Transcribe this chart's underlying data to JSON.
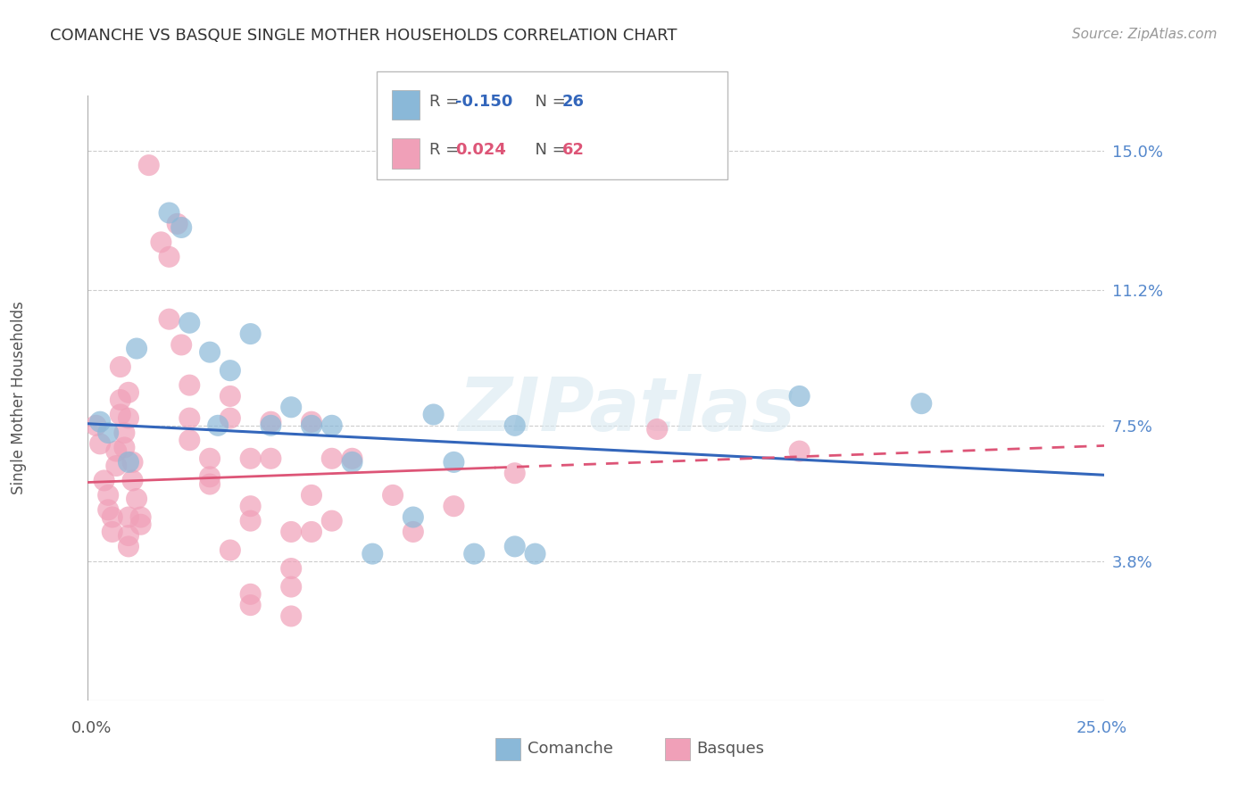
{
  "title": "COMANCHE VS BASQUE SINGLE MOTHER HOUSEHOLDS CORRELATION CHART",
  "source": "Source: ZipAtlas.com",
  "ylabel": "Single Mother Households",
  "xlim": [
    0.0,
    25.0
  ],
  "ylim": [
    0.0,
    16.5
  ],
  "yticks": [
    3.8,
    7.5,
    11.2,
    15.0
  ],
  "ytick_labels": [
    "3.8%",
    "7.5%",
    "11.2%",
    "15.0%"
  ],
  "grid_color": "#cccccc",
  "background_color": "#ffffff",
  "watermark": "ZIPatlas",
  "comanche_R": "-0.150",
  "comanche_N": "26",
  "basque_R": "0.024",
  "basque_N": "62",
  "comanche_color": "#8ab8d8",
  "basque_color": "#f0a0b8",
  "comanche_line_color": "#3366bb",
  "basque_line_color": "#dd5577",
  "comanche_line_x0": 0.0,
  "comanche_line_y0": 7.55,
  "comanche_line_x1": 25.0,
  "comanche_line_y1": 6.15,
  "basque_line_x0": 0.0,
  "basque_line_y0": 5.95,
  "basque_line_x1": 25.0,
  "basque_line_y1": 6.95,
  "basque_dash_start": 10.0,
  "comanche_points": [
    [
      0.3,
      7.6
    ],
    [
      0.5,
      7.3
    ],
    [
      1.0,
      6.5
    ],
    [
      1.2,
      9.6
    ],
    [
      2.0,
      13.3
    ],
    [
      2.3,
      12.9
    ],
    [
      2.5,
      10.3
    ],
    [
      3.0,
      9.5
    ],
    [
      3.2,
      7.5
    ],
    [
      3.5,
      9.0
    ],
    [
      4.0,
      10.0
    ],
    [
      4.5,
      7.5
    ],
    [
      5.0,
      8.0
    ],
    [
      5.5,
      7.5
    ],
    [
      6.0,
      7.5
    ],
    [
      6.5,
      6.5
    ],
    [
      7.0,
      4.0
    ],
    [
      8.0,
      5.0
    ],
    [
      8.5,
      7.8
    ],
    [
      9.0,
      6.5
    ],
    [
      9.5,
      4.0
    ],
    [
      10.5,
      7.5
    ],
    [
      10.5,
      4.2
    ],
    [
      11.0,
      4.0
    ],
    [
      17.5,
      8.3
    ],
    [
      20.5,
      8.1
    ]
  ],
  "basque_points": [
    [
      0.2,
      7.5
    ],
    [
      0.3,
      7.0
    ],
    [
      0.4,
      6.0
    ],
    [
      0.5,
      5.6
    ],
    [
      0.5,
      5.2
    ],
    [
      0.6,
      5.0
    ],
    [
      0.6,
      4.6
    ],
    [
      0.7,
      6.8
    ],
    [
      0.7,
      6.4
    ],
    [
      0.8,
      9.1
    ],
    [
      0.8,
      8.2
    ],
    [
      0.8,
      7.8
    ],
    [
      0.9,
      7.3
    ],
    [
      0.9,
      6.9
    ],
    [
      1.0,
      8.4
    ],
    [
      1.0,
      7.7
    ],
    [
      1.0,
      5.0
    ],
    [
      1.0,
      4.5
    ],
    [
      1.0,
      4.2
    ],
    [
      1.1,
      6.5
    ],
    [
      1.1,
      6.0
    ],
    [
      1.2,
      5.5
    ],
    [
      1.3,
      5.0
    ],
    [
      1.3,
      4.8
    ],
    [
      1.5,
      14.6
    ],
    [
      1.8,
      12.5
    ],
    [
      2.0,
      12.1
    ],
    [
      2.0,
      10.4
    ],
    [
      2.2,
      13.0
    ],
    [
      2.3,
      9.7
    ],
    [
      2.5,
      8.6
    ],
    [
      2.5,
      7.7
    ],
    [
      2.5,
      7.1
    ],
    [
      3.0,
      6.6
    ],
    [
      3.0,
      6.1
    ],
    [
      3.0,
      5.9
    ],
    [
      3.5,
      8.3
    ],
    [
      3.5,
      7.7
    ],
    [
      3.5,
      4.1
    ],
    [
      4.0,
      6.6
    ],
    [
      4.0,
      5.3
    ],
    [
      4.0,
      4.9
    ],
    [
      4.0,
      2.9
    ],
    [
      4.0,
      2.6
    ],
    [
      4.5,
      7.6
    ],
    [
      4.5,
      6.6
    ],
    [
      5.0,
      4.6
    ],
    [
      5.0,
      3.6
    ],
    [
      5.0,
      3.1
    ],
    [
      5.0,
      2.3
    ],
    [
      5.5,
      7.6
    ],
    [
      5.5,
      5.6
    ],
    [
      5.5,
      4.6
    ],
    [
      6.0,
      6.6
    ],
    [
      6.0,
      4.9
    ],
    [
      6.5,
      6.6
    ],
    [
      7.5,
      5.6
    ],
    [
      8.0,
      4.6
    ],
    [
      9.0,
      5.3
    ],
    [
      10.5,
      6.2
    ],
    [
      14.0,
      7.4
    ],
    [
      17.5,
      6.8
    ]
  ]
}
